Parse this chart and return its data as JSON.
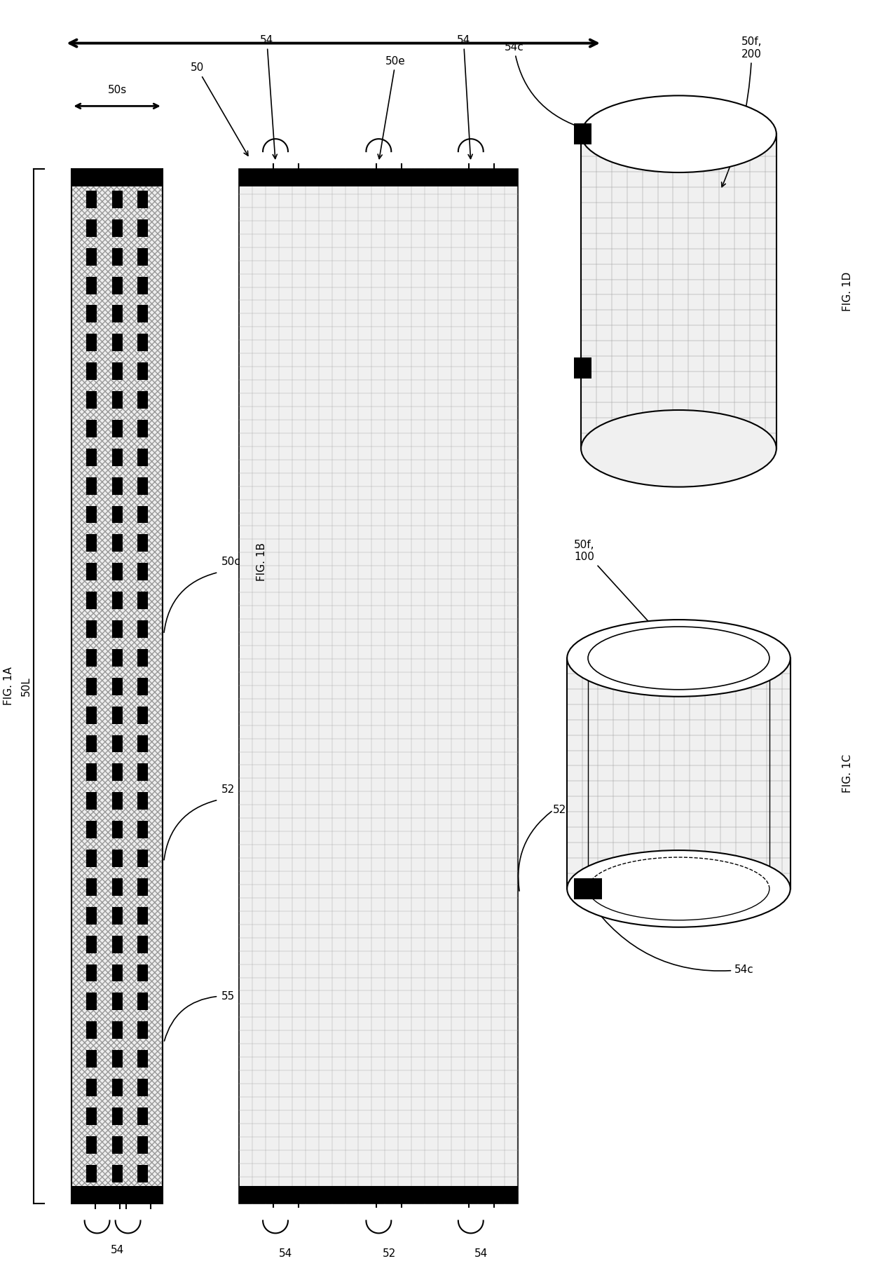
{
  "bg_color": "#ffffff",
  "fig_width": 12.4,
  "fig_height": 18.19,
  "fig1A_label": "FIG. 1A",
  "fig1B_label": "FIG. 1B",
  "fig1C_label": "FIG. 1C",
  "fig1D_label": "FIG. 1D",
  "label_50s": "50s",
  "label_50L": "50L",
  "label_50": "50",
  "label_50c": "50c",
  "label_50e": "50e",
  "label_50f_200": "50f,\n200",
  "label_50f_100": "50f,\n100",
  "label_52": "52",
  "label_54": "54",
  "label_54c": "54c",
  "label_55": "55"
}
